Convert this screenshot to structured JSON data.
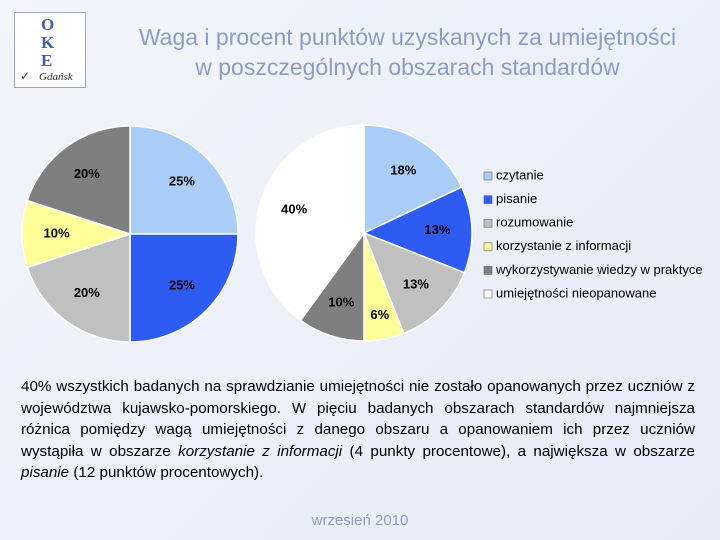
{
  "logo": {
    "letters": [
      "O",
      "K",
      "E"
    ],
    "city": "Gdańsk"
  },
  "title": [
    "Waga i procent punktów uzyskanych za umiejętności",
    "w poszczególnych obszarach standardów"
  ],
  "chart_data": [
    {
      "type": "pie",
      "values": [
        25,
        25,
        20,
        10,
        20
      ],
      "value_labels": [
        "25%",
        "25%",
        "20%",
        "10%",
        "20%"
      ],
      "colors": [
        "#a9cdf6",
        "#2f5cf0",
        "#c0c0c0",
        "#ffff99",
        "#7f7f7f"
      ]
    },
    {
      "type": "pie",
      "categories": [
        "czytanie",
        "pisanie",
        "rozumowanie",
        "korzystanie z informacji",
        "wykorzystywanie wiedzy w praktyce",
        "umiejętności nieopanowane"
      ],
      "values": [
        18,
        13,
        13,
        6,
        10,
        40
      ],
      "value_labels": [
        "18%",
        "13%",
        "13%",
        "6%",
        "10%",
        "40%"
      ],
      "colors": [
        "#a9cdf6",
        "#2f5cf0",
        "#c0c0c0",
        "#ffff99",
        "#7f7f7f",
        "#ffffff"
      ]
    }
  ],
  "paragraph": [
    {
      "text": "40% wszystkich badanych na sprawdzianie umiejętności nie zostało opanowanych przez uczniów z województwa kujawsko-pomorskiego. W pięciu badanych obszarach standardów najmniejsza różnica pomiędzy wagą umiejętności z danego obszaru a opanowaniem ich przez uczniów wystąpiła w obszarze ",
      "italic": false
    },
    {
      "text": "korzystanie z informacji",
      "italic": true
    },
    {
      "text": " (4 punkty procentowe), a największa w obszarze ",
      "italic": false
    },
    {
      "text": "pisanie",
      "italic": true
    },
    {
      "text": " (12 punktów procentowych).",
      "italic": false
    }
  ],
  "footer": "wrzesień 2010"
}
